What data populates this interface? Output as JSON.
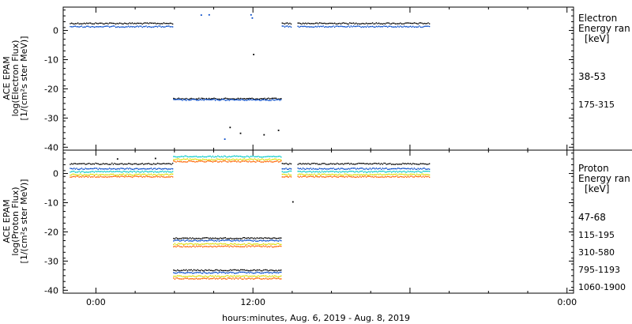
{
  "chart_data": [
    {
      "type": "scatter",
      "panel": "top",
      "ylabel": [
        "ACE EPAM",
        "log(Electron Flux)",
        "[1/(cm²s ster MeV)]"
      ],
      "ylim": [
        -41,
        8
      ],
      "yticks": [
        0,
        -10,
        -20,
        -30,
        -40
      ],
      "xlim": [
        -2.5,
        36.5
      ],
      "legend_title": [
        "Electron",
        "Energy ran",
        "[keV]"
      ],
      "series": [
        {
          "name": "38-53",
          "color": "#000000",
          "segments": [
            {
              "x0": -2.0,
              "x1": 5.9,
              "y": 2.6
            },
            {
              "x0": 5.9,
              "x1": 14.2,
              "y": -23.2
            },
            {
              "x0": 14.2,
              "x1": 14.9,
              "y": 2.6
            },
            {
              "x0": 15.4,
              "x1": 25.5,
              "y": 2.6
            }
          ],
          "points": [
            [
              10.2,
              -33
            ],
            [
              11.0,
              -35
            ],
            [
              12.0,
              -8
            ],
            [
              12.8,
              -35.5
            ],
            [
              13.9,
              -34
            ]
          ]
        },
        {
          "name": "175-315",
          "color": "#0047c8",
          "segments": [
            {
              "x0": -2.0,
              "x1": 5.9,
              "y": 1.5
            },
            {
              "x0": 5.9,
              "x1": 14.2,
              "y": -23.6
            },
            {
              "x0": 14.2,
              "x1": 14.9,
              "y": 1.5
            },
            {
              "x0": 15.4,
              "x1": 25.5,
              "y": 1.5
            }
          ],
          "points": [
            [
              8.0,
              5.5
            ],
            [
              8.6,
              5.6
            ],
            [
              11.8,
              5.6
            ],
            [
              11.9,
              4.5
            ],
            [
              9.8,
              -37
            ]
          ]
        }
      ]
    },
    {
      "type": "scatter",
      "panel": "bottom",
      "ylabel": [
        "ACE EPAM",
        "log(Proton Flux)",
        "[1/(cm²s ster MeV)]"
      ],
      "ylim": [
        -41,
        8
      ],
      "yticks": [
        0,
        -10,
        -20,
        -30,
        -40
      ],
      "xlim": [
        -2.5,
        36.5
      ],
      "legend_title": [
        "Proton",
        "Energy ran",
        "[keV]"
      ],
      "series": [
        {
          "name": "47-68",
          "color": "#000000",
          "segments": [
            {
              "x0": -2.0,
              "x1": 5.9,
              "y": 3.5
            },
            {
              "x0": 5.9,
              "x1": 14.2,
              "y": -22.0
            },
            {
              "x0": 5.9,
              "x1": 14.2,
              "y": -33.0
            },
            {
              "x0": 14.2,
              "x1": 14.9,
              "y": 3.5
            },
            {
              "x0": 15.4,
              "x1": 25.5,
              "y": 3.5
            }
          ],
          "points": [
            [
              1.6,
              5.2
            ],
            [
              4.5,
              5.4
            ],
            [
              15.0,
              -9.5
            ]
          ]
        },
        {
          "name": "115-195",
          "color": "#0047c8",
          "segments": [
            {
              "x0": -2.0,
              "x1": 5.9,
              "y": 1.8
            },
            {
              "x0": 5.9,
              "x1": 14.2,
              "y": -22.8
            },
            {
              "x0": 5.9,
              "x1": 14.2,
              "y": -33.8
            },
            {
              "x0": 14.2,
              "x1": 14.9,
              "y": 1.8
            },
            {
              "x0": 15.4,
              "x1": 25.5,
              "y": 1.8
            }
          ],
          "points": []
        },
        {
          "name": "310-580",
          "color": "#00c8c8",
          "segments": [
            {
              "x0": -2.0,
              "x1": 5.9,
              "y": 0.8
            },
            {
              "x0": 5.9,
              "x1": 14.2,
              "y": 6.0
            },
            {
              "x0": 14.2,
              "x1": 14.9,
              "y": 0.8
            },
            {
              "x0": 15.4,
              "x1": 25.5,
              "y": 0.8
            }
          ],
          "points": []
        },
        {
          "name": "795-1193",
          "color": "#dcdc00",
          "segments": [
            {
              "x0": -2.0,
              "x1": 5.9,
              "y": -0.2
            },
            {
              "x0": 5.9,
              "x1": 14.2,
              "y": 5.0
            },
            {
              "x0": 5.9,
              "x1": 14.2,
              "y": -24.0
            },
            {
              "x0": 5.9,
              "x1": 14.2,
              "y": -35.0
            },
            {
              "x0": 14.2,
              "x1": 14.9,
              "y": -0.2
            },
            {
              "x0": 15.4,
              "x1": 25.5,
              "y": -0.2
            }
          ],
          "points": []
        },
        {
          "name": "1060-1900",
          "color": "#ff6400",
          "segments": [
            {
              "x0": -2.0,
              "x1": 5.9,
              "y": -0.9
            },
            {
              "x0": 5.9,
              "x1": 14.2,
              "y": 4.3
            },
            {
              "x0": 5.9,
              "x1": 14.2,
              "y": -24.8
            },
            {
              "x0": 5.9,
              "x1": 14.2,
              "y": -35.8
            },
            {
              "x0": 14.2,
              "x1": 14.9,
              "y": -0.9
            },
            {
              "x0": 15.4,
              "x1": 25.5,
              "y": -0.9
            }
          ],
          "points": []
        }
      ]
    }
  ],
  "xaxis": {
    "ticks": [
      {
        "x": 0,
        "label": "0:00"
      },
      {
        "x": 12,
        "label": "12:00"
      },
      {
        "x": 24,
        "label": ""
      },
      {
        "x": 36,
        "label": "0:00"
      }
    ],
    "minor_step": 3,
    "label": "hours:minutes, Aug.  6, 2019 - Aug.  8, 2019"
  }
}
